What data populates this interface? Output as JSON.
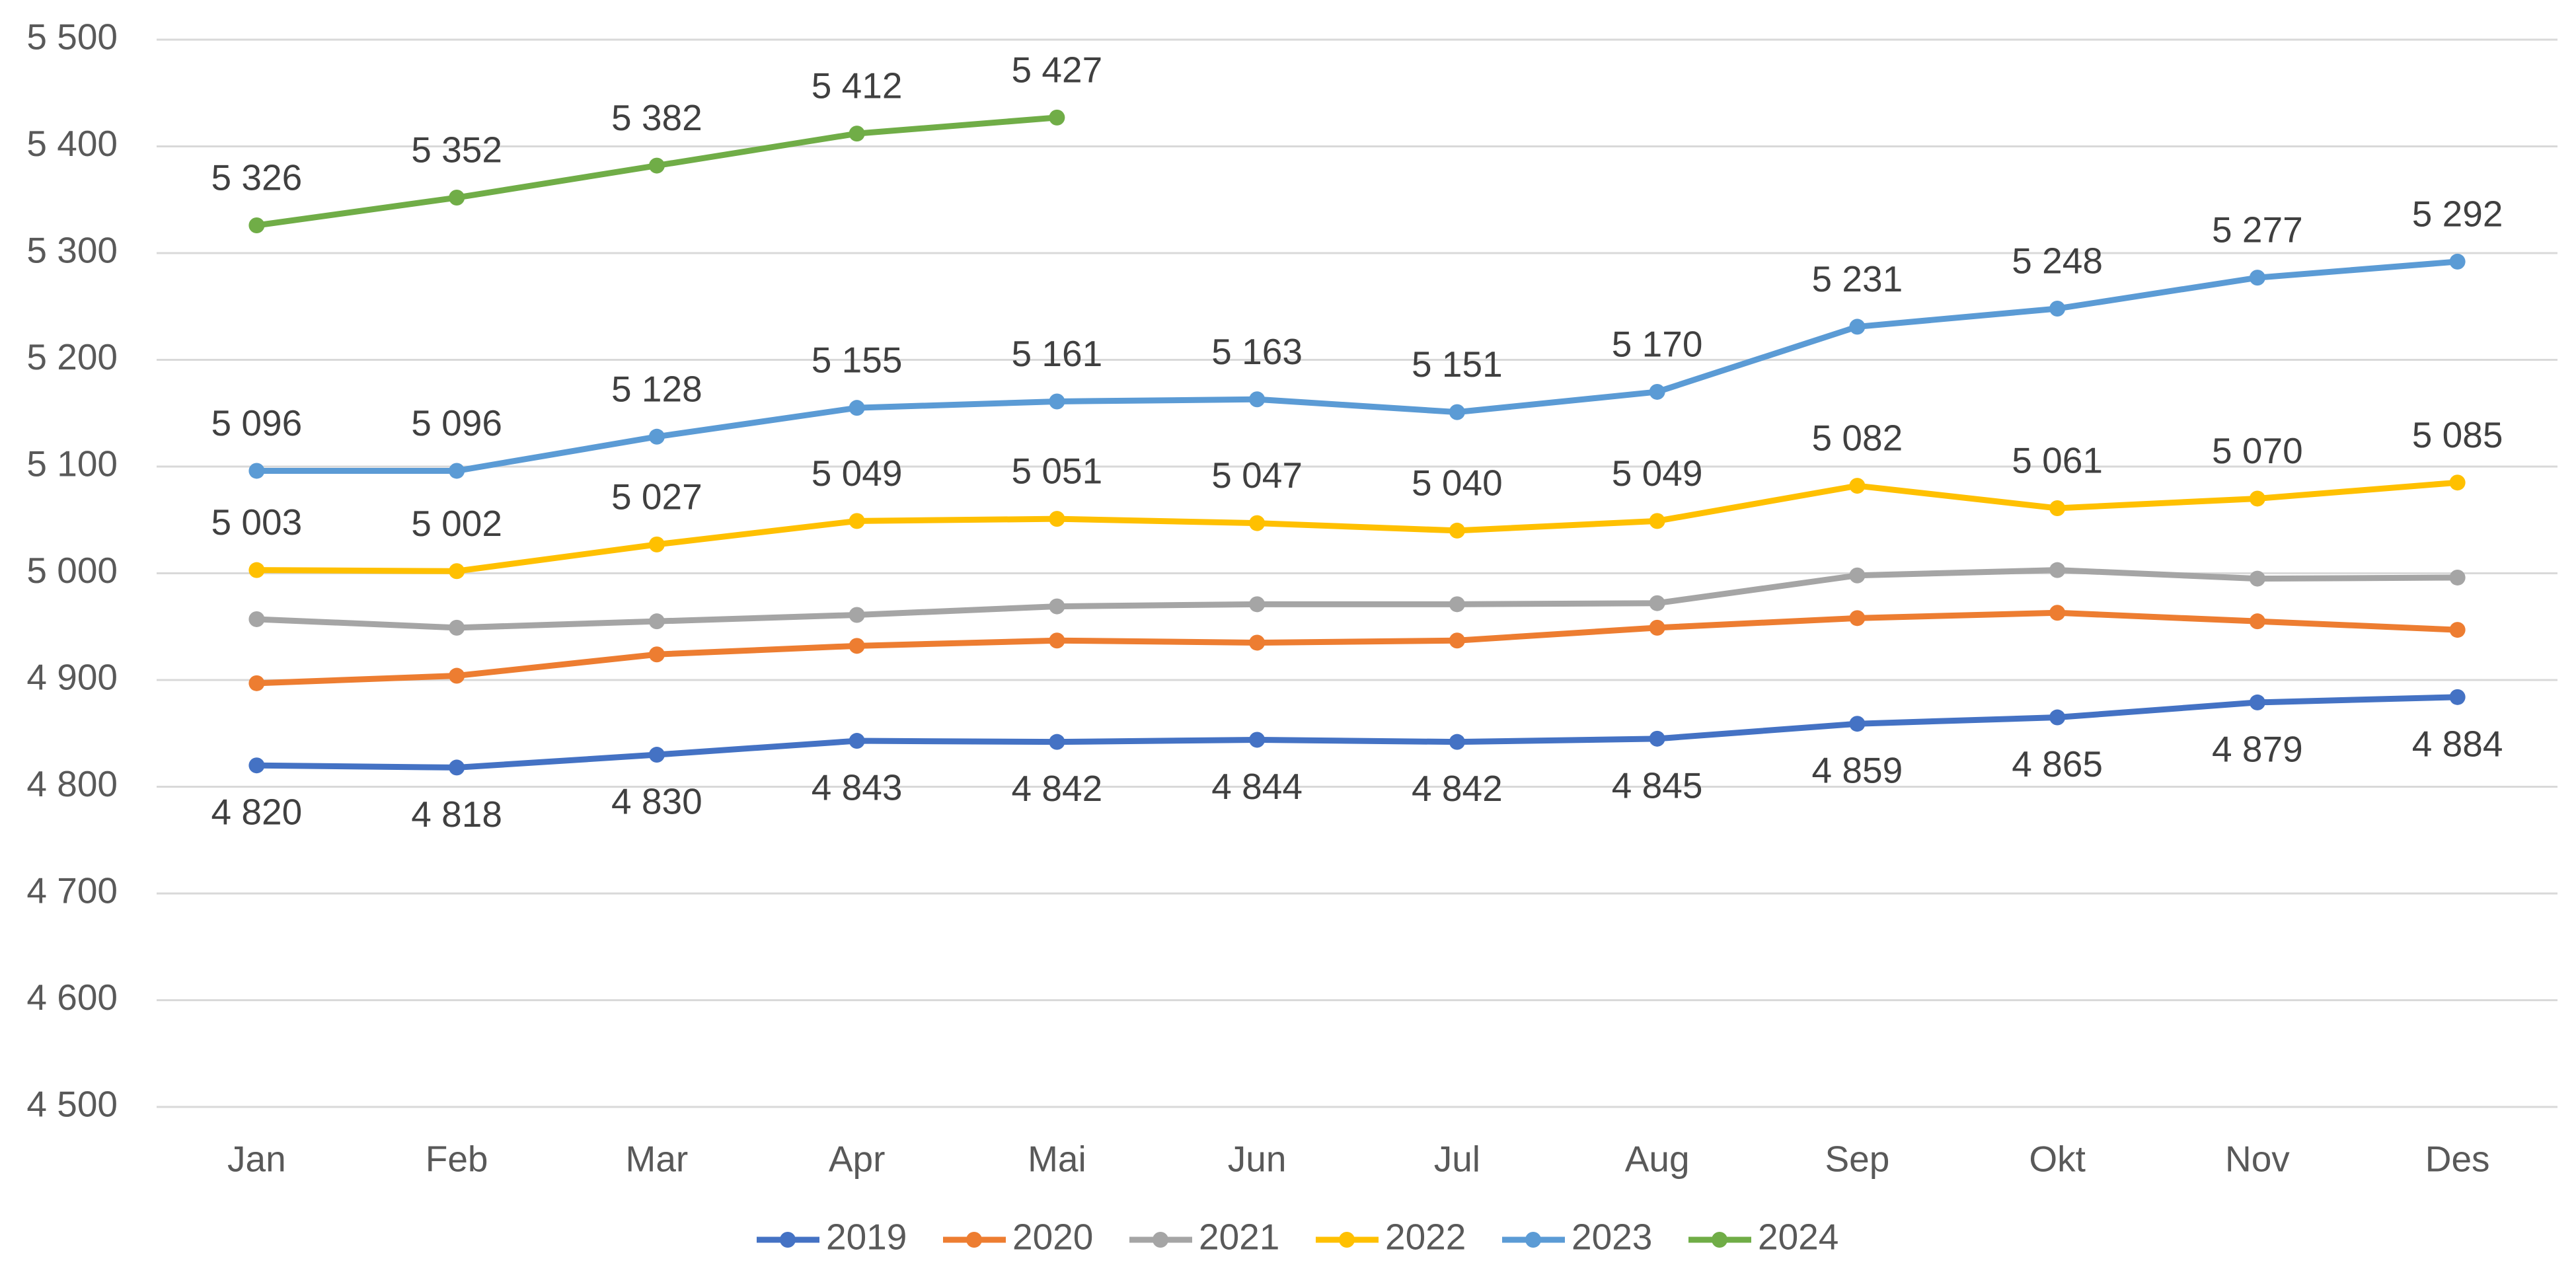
{
  "chart_data": {
    "type": "line",
    "categories": [
      "Jan",
      "Feb",
      "Mar",
      "Apr",
      "Mai",
      "Jun",
      "Jul",
      "Aug",
      "Sep",
      "Okt",
      "Nov",
      "Des"
    ],
    "ylim": [
      4500,
      5500
    ],
    "yticks": [
      {
        "value": 4500,
        "label": "4 500"
      },
      {
        "value": 4600,
        "label": "4 600"
      },
      {
        "value": 4700,
        "label": "4 700"
      },
      {
        "value": 4800,
        "label": "4 800"
      },
      {
        "value": 4900,
        "label": "4 900"
      },
      {
        "value": 5000,
        "label": "5 000"
      },
      {
        "value": 5100,
        "label": "5 100"
      },
      {
        "value": 5200,
        "label": "5 200"
      },
      {
        "value": 5300,
        "label": "5 300"
      },
      {
        "value": 5400,
        "label": "5 400"
      },
      {
        "value": 5500,
        "label": "5 500"
      }
    ],
    "grid": true,
    "legend": "bottom",
    "series": [
      {
        "name": "2019",
        "color": "#4472c4",
        "label_position": "below",
        "values": [
          4820,
          4818,
          4830,
          4843,
          4842,
          4844,
          4842,
          4845,
          4859,
          4865,
          4879,
          4884
        ],
        "value_labels": [
          "4 820",
          "4 818",
          "4 830",
          "4 843",
          "4 842",
          "4 844",
          "4 842",
          "4 845",
          "4 859",
          "4 865",
          "4 879",
          "4 884"
        ]
      },
      {
        "name": "2020",
        "color": "#ed7d31",
        "values": [
          4897,
          4904,
          4924,
          4932,
          4937,
          4935,
          4937,
          4949,
          4958,
          4963,
          4955,
          4947
        ]
      },
      {
        "name": "2021",
        "color": "#a5a5a5",
        "values": [
          4957,
          4949,
          4955,
          4961,
          4969,
          4971,
          4971,
          4972,
          4998,
          5003,
          4995,
          4996
        ]
      },
      {
        "name": "2022",
        "color": "#ffc000",
        "label_position": "above",
        "values": [
          5003,
          5002,
          5027,
          5049,
          5051,
          5047,
          5040,
          5049,
          5082,
          5061,
          5070,
          5085
        ],
        "value_labels": [
          "5 003",
          "5 002",
          "5 027",
          "5 049",
          "5 051",
          "5 047",
          "5 040",
          "5 049",
          "5 082",
          "5 061",
          "5 070",
          "5 085"
        ]
      },
      {
        "name": "2023",
        "color": "#5b9bd5",
        "label_position": "above",
        "values": [
          5096,
          5096,
          5128,
          5155,
          5161,
          5163,
          5151,
          5170,
          5231,
          5248,
          5277,
          5292
        ],
        "value_labels": [
          "5 096",
          "5 096",
          "5 128",
          "5 155",
          "5 161",
          "5 163",
          "5 151",
          "5 170",
          "5 231",
          "5 248",
          "5 277",
          "5 292"
        ]
      },
      {
        "name": "2024",
        "color": "#70ad47",
        "label_position": "above",
        "values": [
          5326,
          5352,
          5382,
          5412,
          5427,
          null,
          null,
          null,
          null,
          null,
          null,
          null
        ],
        "value_labels": [
          "5 326",
          "5 352",
          "5 382",
          "5 412",
          "5 427",
          null,
          null,
          null,
          null,
          null,
          null,
          null
        ]
      }
    ]
  }
}
